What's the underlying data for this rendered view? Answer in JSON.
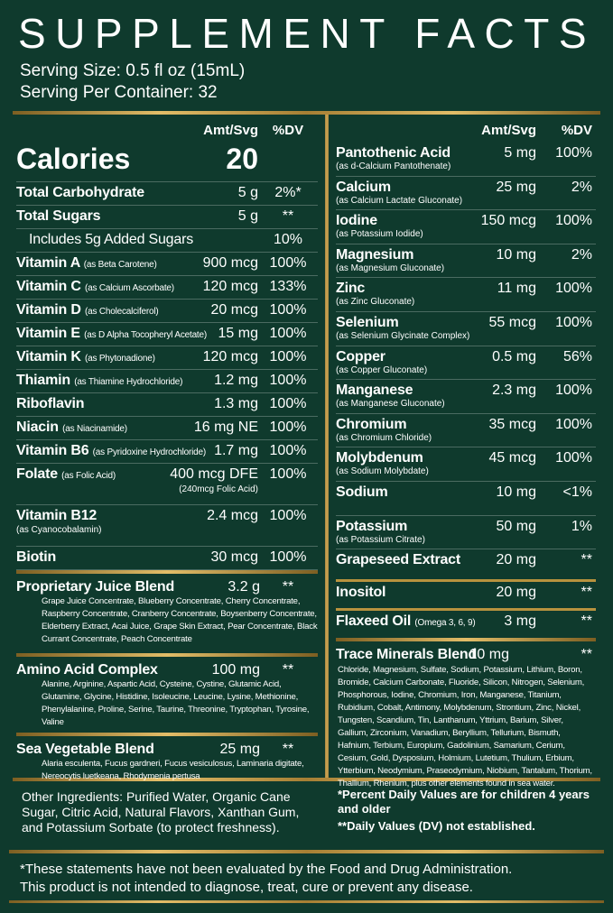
{
  "header": {
    "title": "SUPPLEMENT FACTS",
    "serving_size": "Serving Size: 0.5 fl oz (15mL)",
    "servings_per_container": "Serving Per Container: 32"
  },
  "left": {
    "columns": [
      "Amt/Svg",
      "%DV"
    ],
    "calories": {
      "name": "Calories",
      "amount": "20"
    },
    "rows": [
      {
        "name": "Total Carbohydrate",
        "amount": "5 g",
        "dv": "2%*"
      },
      {
        "name": "Total Sugars",
        "amount": "5 g",
        "dv": "**"
      },
      {
        "name": "Includes 5g Added Sugars",
        "dv": "10%"
      },
      {
        "name": "Vitamin A",
        "note": "(as Beta Carotene)",
        "amount": "900 mcg",
        "dv": "100%"
      },
      {
        "name": "Vitamin C",
        "note": "(as Calcium Ascorbate)",
        "amount": "120 mcg",
        "dv": "133%"
      },
      {
        "name": "Vitamin D",
        "note": "(as Cholecalciferol)",
        "amount": "20 mcg",
        "dv": "100%"
      },
      {
        "name": "Vitamin E",
        "note": "(as D Alpha Tocopheryl Acetate)",
        "amount": "15 mg",
        "dv": "100%"
      },
      {
        "name": "Vitamin K",
        "note": "(as Phytonadione)",
        "amount": "120 mcg",
        "dv": "100%"
      },
      {
        "name": "Thiamin",
        "note": "(as Thiamine Hydrochloride)",
        "amount": "1.2 mg",
        "dv": "100%"
      },
      {
        "name": "Riboflavin",
        "amount": "1.3 mg",
        "dv": "100%"
      },
      {
        "name": "Niacin",
        "note": "(as Niacinamide)",
        "amount": "16 mg NE",
        "dv": "100%"
      },
      {
        "name": "Vitamin B6",
        "note": "(as Pyridoxine Hydrochloride)",
        "amount": "1.7 mg",
        "dv": "100%"
      },
      {
        "name": "Folate",
        "note": "(as Folic Acid)",
        "amount": "400 mcg DFE",
        "amount_note": "(240mcg Folic Acid)",
        "dv": "100%"
      },
      {
        "name": "Vitamin B12",
        "sub": "(as Cyanocobalamin)",
        "amount": "2.4 mcg",
        "dv": "100%"
      },
      {
        "name": "Biotin",
        "amount": "30 mcg",
        "dv": "100%"
      }
    ],
    "blends": [
      {
        "name": "Proprietary Juice Blend",
        "amount": "3.2 g",
        "dv": "**",
        "description": "Grape Juice Concentrate, Blueberry Concentrate, Cherry Concentrate, Raspberry Concentrate, Cranberry Concentrate, Boysenberry Concentrate, Elderberry Extract, Acai Juice, Grape Skin Extract, Pear Concentrate, Black Currant Concentrate, Peach Concentrate"
      },
      {
        "name": "Amino Acid Complex",
        "amount": "100 mg",
        "dv": "**",
        "description": "Alanine, Arginine, Aspartic Acid, Cysteine, Cystine, Glutamic Acid, Glutamine, Glycine, Histidine, Isoleucine, Leucine, Lysine, Methionine, Phenylalanine, Proline, Serine, Taurine, Threonine, Tryptophan, Tyrosine, Valine"
      },
      {
        "name": "Sea Vegetable Blend",
        "amount": "25 mg",
        "dv": "**",
        "description": "Alaria esculenta, Fucus gardneri, Fucus vesiculosus, Laminaria digitate, Nereocytis luetkeana, Rhodymenia pertusa"
      }
    ]
  },
  "right": {
    "columns": [
      "Amt/Svg",
      "%DV"
    ],
    "rows": [
      {
        "name": "Pantothenic Acid",
        "sub": "(as d-Calcium Pantothenate)",
        "amount": "5 mg",
        "dv": "100%"
      },
      {
        "name": "Calcium",
        "sub": "(as Calcium Lactate Gluconate)",
        "amount": "25 mg",
        "dv": "2%"
      },
      {
        "name": "Iodine",
        "sub": "(as Potassium Iodide)",
        "amount": "150 mcg",
        "dv": "100%"
      },
      {
        "name": "Magnesium",
        "sub": "(as Magnesium Gluconate)",
        "amount": "10 mg",
        "dv": "2%"
      },
      {
        "name": "Zinc",
        "sub": "(as Zinc Gluconate)",
        "amount": "11 mg",
        "dv": "100%"
      },
      {
        "name": "Selenium",
        "sub": "(as Selenium Glycinate Complex)",
        "amount": "55 mcg",
        "dv": "100%"
      },
      {
        "name": "Copper",
        "sub": "(as Copper Gluconate)",
        "amount": "0.5 mg",
        "dv": "56%"
      },
      {
        "name": "Manganese",
        "sub": "(as Manganese Gluconate)",
        "amount": "2.3 mg",
        "dv": "100%"
      },
      {
        "name": "Chromium",
        "sub": "(as Chromium Chloride)",
        "amount": "35 mcg",
        "dv": "100%"
      },
      {
        "name": "Molybdenum",
        "sub": "(as Sodium Molybdate)",
        "amount": "45 mcg",
        "dv": "100%"
      },
      {
        "name": "Sodium",
        "amount": "10 mg",
        "dv": "<1%"
      },
      {
        "name": "Potassium",
        "sub": "(as Potassium Citrate)",
        "amount": "50 mg",
        "dv": "1%"
      }
    ],
    "extras": [
      {
        "name": "Grapeseed Extract",
        "amount": "20 mg",
        "dv": "**"
      },
      {
        "name": "Inositol",
        "amount": "20 mg",
        "dv": "**"
      },
      {
        "name": "Flaxeed Oil",
        "note": "(Omega 3, 6, 9)",
        "amount": "3 mg",
        "dv": "**"
      }
    ],
    "blends": [
      {
        "name": "Trace Minerals Blend",
        "amount": "10 mg",
        "dv": "**",
        "description": "Chloride, Magnesium, Sulfate, Sodium, Potassium, Lithium, Boron, Bromide, Calcium Carbonate, Fluoride, Silicon, Nitrogen, Selenium, Phosphorous, Iodine, Chromium, Iron, Manganese, Titanium, Rubidium, Cobalt, Antimony, Molybdenum, Strontium, Zinc, Nickel, Tungsten, Scandium, Tin, Lanthanum, Yttrium, Barium, Silver, Gallium, Zirconium, Vanadium, Beryllium, Tellurium, Bismuth, Hafnium, Terbium, Europium, Gadolinium, Samarium, Cerium, Cesium, Gold, Dysposium, Holmium, Lutetium, Thulium, Erbium, Ytterbium, Neodymium, Praseodymium, Niobium, Tantalum, Thorium, Thallium, Rhenium, plus other elements found in sea water."
      }
    ]
  },
  "footer": {
    "other_ingredients": "Other Ingredients: Purified Water, Organic Cane Sugar, Citric Acid, Natural Flavors, Xanthan Gum, and Potassium Sorbate (to protect freshness).",
    "notes": [
      "*Percent Daily Values are for children 4 years and older",
      "**Daily Values (DV) not established."
    ],
    "disclaimer": [
      "*These statements have not been evaluated by the Food and Drug Administration.",
      "This product is not intended to diagnose, treat, cure or prevent any disease."
    ]
  }
}
